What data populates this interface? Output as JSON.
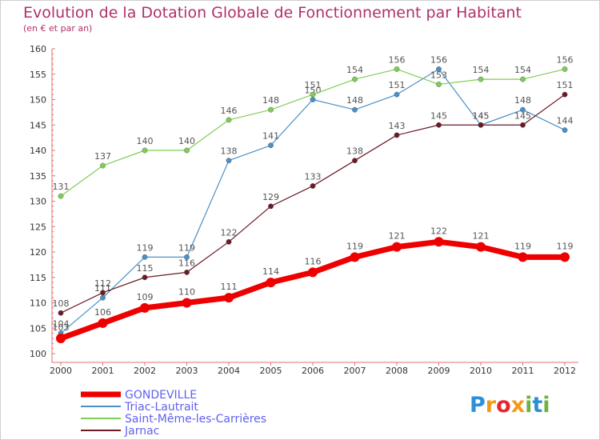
{
  "title": "Evolution de la Dotation Globale de Fonctionnement par Habitant",
  "subtitle": "(en € et par an)",
  "logo": {
    "text": "Proxiti",
    "letters": [
      {
        "ch": "P",
        "color": "#2d8fd8"
      },
      {
        "ch": "r",
        "color": "#f29a18"
      },
      {
        "ch": "o",
        "color": "#e2282d"
      },
      {
        "ch": "x",
        "color": "#f29a18"
      },
      {
        "ch": "i",
        "color": "#6db33f"
      },
      {
        "ch": "t",
        "color": "#2d8fd8"
      },
      {
        "ch": "i",
        "color": "#6db33f"
      }
    ]
  },
  "chart_data": {
    "type": "line",
    "title": "Evolution de la Dotation Globale de Fonctionnement par Habitant",
    "subtitle": "(en € et par an)",
    "x": [
      "2000",
      "2001",
      "2002",
      "2003",
      "2004",
      "2005",
      "2006",
      "2007",
      "2008",
      "2009",
      "2010",
      "2011",
      "2012"
    ],
    "ylim": [
      100,
      160
    ],
    "yticks": [
      "100",
      "105",
      "110",
      "115",
      "120",
      "125",
      "130",
      "135",
      "140",
      "145",
      "150",
      "155",
      "160"
    ],
    "grid": false,
    "legend": "bottom",
    "series": [
      {
        "name": "GONDEVILLE",
        "color": "#ee0000",
        "values": [
          103,
          106,
          109,
          110,
          111,
          114,
          116,
          119,
          121,
          122,
          121,
          119,
          119
        ]
      },
      {
        "name": "Triac-Lautrait",
        "color": "#4a90c8",
        "values": [
          104,
          111,
          119,
          119,
          138,
          141,
          150,
          148,
          151,
          156,
          145,
          148,
          144
        ]
      },
      {
        "name": "Saint-Même-les-Carrières",
        "color": "#80cc55",
        "values": [
          131,
          137,
          140,
          140,
          146,
          148,
          151,
          154,
          156,
          153,
          154,
          154,
          156
        ]
      },
      {
        "name": "Jarnac",
        "color": "#6b1a26",
        "values": [
          108,
          112,
          115,
          116,
          122,
          129,
          133,
          138,
          143,
          145,
          145,
          145,
          151
        ]
      }
    ]
  }
}
